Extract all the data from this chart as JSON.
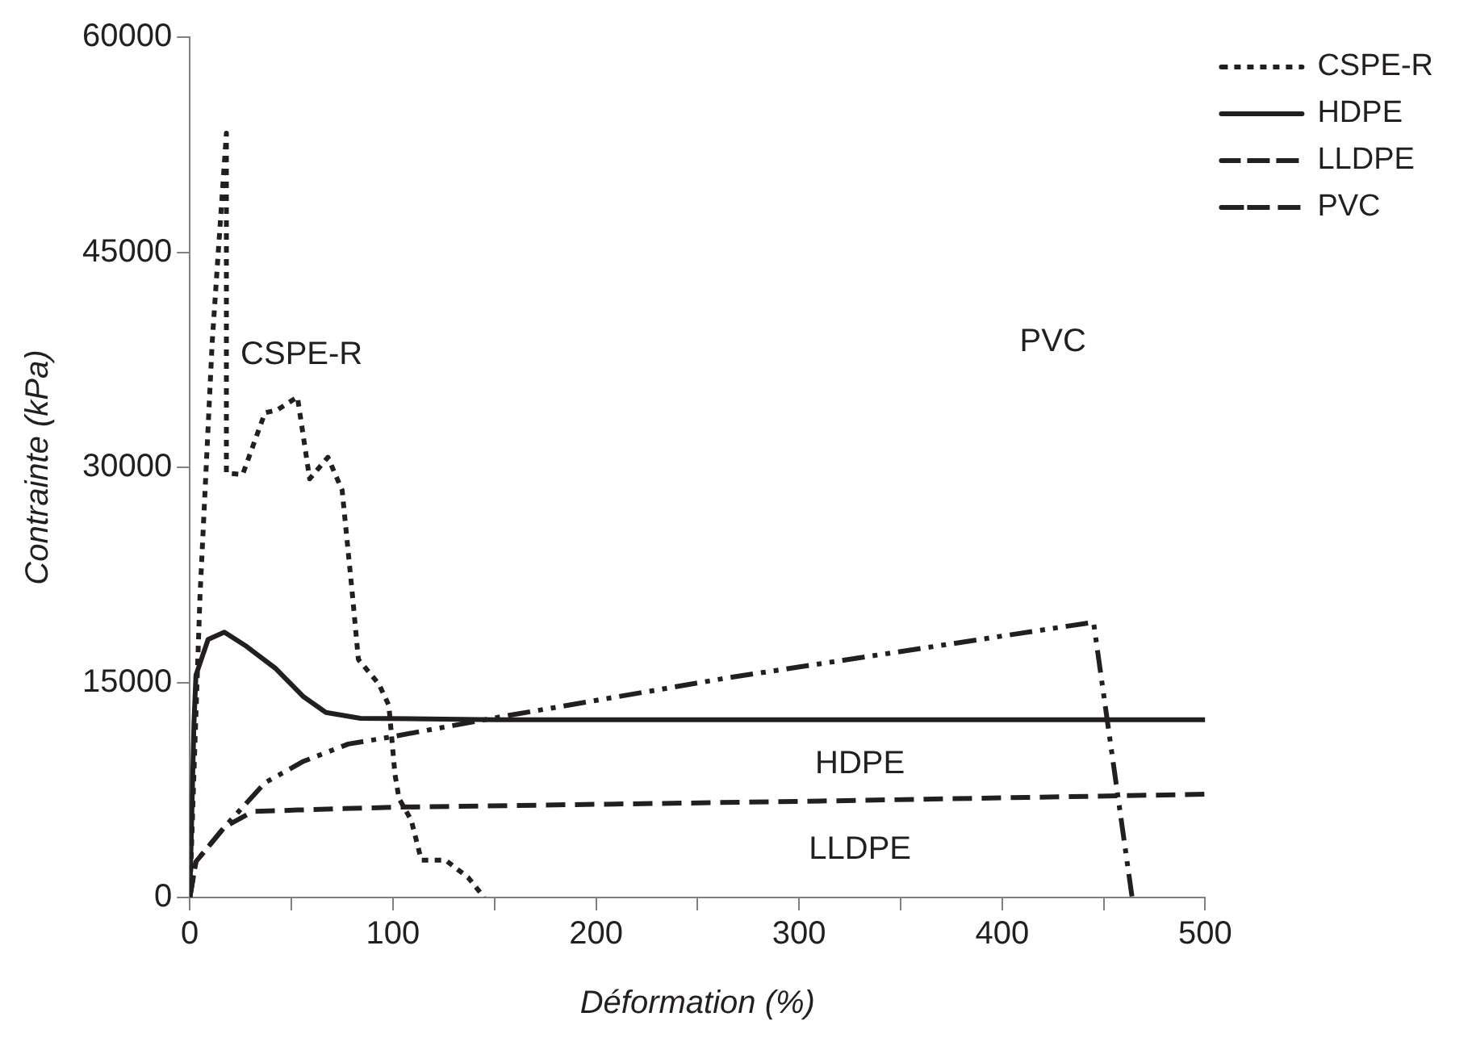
{
  "chart_data": {
    "type": "line",
    "xlabel": "Déformation (%)",
    "ylabel": "Contrainte (kPa)",
    "xlim": [
      0,
      500
    ],
    "xticks": [
      0,
      {
        "value": 50,
        "label": null
      },
      100,
      {
        "value": 150,
        "label": null
      },
      200,
      {
        "value": 250,
        "label": null
      },
      300,
      {
        "value": 350,
        "label": null
      },
      400,
      {
        "value": 450,
        "label": null
      },
      500
    ],
    "ylim": [
      0,
      60000
    ],
    "yticks": [
      0,
      15000,
      30000,
      45000,
      60000
    ],
    "grid": false,
    "legend": "right",
    "marker": "none",
    "series": [
      {
        "name": "CSPE-R",
        "color": "#231f20",
        "line_style": "dotted",
        "x": [
          0,
          2,
          5,
          11,
          14,
          18,
          18,
          26,
          37,
          43,
          53,
          59,
          68,
          75,
          80,
          83,
          93,
          98,
          101,
          103,
          109,
          114,
          126,
          137,
          145
        ],
        "values": [
          0,
          8600,
          21000,
          38700,
          45000,
          53300,
          29600,
          29500,
          33800,
          34000,
          34900,
          29200,
          30700,
          28400,
          21200,
          16600,
          14900,
          13400,
          8600,
          6900,
          5400,
          2600,
          2600,
          1400,
          0
        ]
      },
      {
        "name": "HDPE",
        "color": "#231f20",
        "line_style": "solid",
        "x": [
          0,
          2,
          3,
          9,
          17,
          28,
          42,
          56,
          67,
          84,
          150,
          300,
          500
        ],
        "values": [
          0,
          12000,
          15500,
          18000,
          18500,
          17500,
          16000,
          14000,
          12900,
          12500,
          12400,
          12400,
          12400
        ]
      },
      {
        "name": "LLDPE",
        "color": "#231f20",
        "line_style": "dashed",
        "x": [
          0,
          3,
          17,
          31,
          53,
          76,
          103,
          300,
          500
        ],
        "values": [
          0,
          2500,
          4900,
          6000,
          6100,
          6200,
          6300,
          6700,
          7200
        ]
      },
      {
        "name": "PVC",
        "color": "#231f20",
        "line_style": "dashdotdot",
        "x": [
          0,
          3,
          17,
          37,
          56,
          78,
          99,
          153,
          264,
          445,
          464
        ],
        "values": [
          0,
          2500,
          4900,
          8000,
          9500,
          10700,
          11200,
          12600,
          15300,
          19200,
          0
        ]
      }
    ],
    "annotations": [
      "CSPE-R",
      "PVC",
      "HDPE",
      "LLDPE"
    ]
  }
}
